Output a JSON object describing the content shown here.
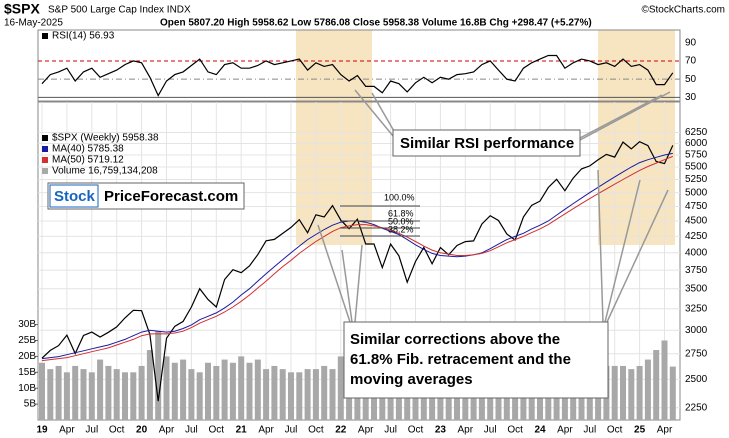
{
  "header": {
    "symbol": "$SPX",
    "name": "S&P 500 Large Cap Index INDX",
    "date": "16-May-2025",
    "quote": "Open 5807.20 High 5958.62 Low 5786.08 Close 5958.38 Volume 16.8B Chg +298.47 (+5.27%)",
    "credit": "©StockCharts.com"
  },
  "annotations": {
    "rsi_note": "Similar RSI performance",
    "brand_a": "Stock",
    "brand_b": "PriceForecast.com",
    "correction_note": [
      "Similar corrections above the",
      "61.8% Fib. retracement and the",
      "moving averages"
    ],
    "fib_left": [
      "100.0%",
      "61.8%",
      "50.0%",
      "38.2%"
    ]
  },
  "chart_data": [
    {
      "type": "line",
      "x": [
        "2019-01",
        "2019-02",
        "2019-03",
        "2019-04",
        "2019-05",
        "2019-06",
        "2019-07",
        "2019-08",
        "2019-09",
        "2019-10",
        "2019-11",
        "2019-12",
        "2020-01",
        "2020-02",
        "2020-03",
        "2020-04",
        "2020-05",
        "2020-06",
        "2020-07",
        "2020-08",
        "2020-09",
        "2020-10",
        "2020-11",
        "2020-12",
        "2021-01",
        "2021-02",
        "2021-03",
        "2021-04",
        "2021-05",
        "2021-06",
        "2021-07",
        "2021-08",
        "2021-09",
        "2021-10",
        "2021-11",
        "2021-12",
        "2022-01",
        "2022-02",
        "2022-03",
        "2022-04",
        "2022-05",
        "2022-06",
        "2022-07",
        "2022-08",
        "2022-09",
        "2022-10",
        "2022-11",
        "2022-12",
        "2023-01",
        "2023-02",
        "2023-03",
        "2023-04",
        "2023-05",
        "2023-06",
        "2023-07",
        "2023-08",
        "2023-09",
        "2023-10",
        "2023-11",
        "2023-12",
        "2024-01",
        "2024-02",
        "2024-03",
        "2024-04",
        "2024-05",
        "2024-06",
        "2024-07",
        "2024-08",
        "2024-09",
        "2024-10",
        "2024-11",
        "2024-12",
        "2025-01",
        "2025-02",
        "2025-03",
        "2025-04",
        "2025-05"
      ],
      "series": [
        {
          "name": "RSI(14) 56.93",
          "color": "#000000",
          "values": [
            45,
            55,
            58,
            62,
            48,
            58,
            62,
            52,
            56,
            60,
            66,
            70,
            68,
            52,
            32,
            48,
            55,
            58,
            65,
            72,
            58,
            55,
            66,
            68,
            62,
            62,
            65,
            70,
            66,
            68,
            70,
            72,
            60,
            68,
            64,
            66,
            55,
            48,
            54,
            42,
            42,
            35,
            48,
            45,
            36,
            46,
            52,
            46,
            52,
            50,
            55,
            56,
            58,
            66,
            70,
            60,
            50,
            48,
            62,
            68,
            72,
            76,
            76,
            62,
            68,
            72,
            70,
            66,
            68,
            64,
            72,
            64,
            66,
            60,
            44,
            44,
            56.93
          ]
        }
      ],
      "ylim": [
        26,
        104
      ],
      "yticks": [
        30,
        50,
        70,
        90
      ],
      "reflines": [
        {
          "value": 70,
          "color": "#cc0000"
        },
        {
          "value": 50,
          "color": "#888888"
        },
        {
          "value": 30,
          "color": "#555555"
        }
      ]
    },
    {
      "type": "line",
      "log": true,
      "grid": true,
      "x": [
        "2019-01",
        "2019-02",
        "2019-03",
        "2019-04",
        "2019-05",
        "2019-06",
        "2019-07",
        "2019-08",
        "2019-09",
        "2019-10",
        "2019-11",
        "2019-12",
        "2020-01",
        "2020-02",
        "2020-03",
        "2020-04",
        "2020-05",
        "2020-06",
        "2020-07",
        "2020-08",
        "2020-09",
        "2020-10",
        "2020-11",
        "2020-12",
        "2021-01",
        "2021-02",
        "2021-03",
        "2021-04",
        "2021-05",
        "2021-06",
        "2021-07",
        "2021-08",
        "2021-09",
        "2021-10",
        "2021-11",
        "2021-12",
        "2022-01",
        "2022-02",
        "2022-03",
        "2022-04",
        "2022-05",
        "2022-06",
        "2022-07",
        "2022-08",
        "2022-09",
        "2022-10",
        "2022-11",
        "2022-12",
        "2023-01",
        "2023-02",
        "2023-03",
        "2023-04",
        "2023-05",
        "2023-06",
        "2023-07",
        "2023-08",
        "2023-09",
        "2023-10",
        "2023-11",
        "2023-12",
        "2024-01",
        "2024-02",
        "2024-03",
        "2024-04",
        "2024-05",
        "2024-06",
        "2024-07",
        "2024-08",
        "2024-09",
        "2024-10",
        "2024-11",
        "2024-12",
        "2025-01",
        "2025-02",
        "2025-03",
        "2025-04",
        "2025-05"
      ],
      "series": [
        {
          "name": "$SPX (Weekly) 5958.38",
          "color": "#000000",
          "values": [
            2704,
            2784,
            2834,
            2946,
            2752,
            2942,
            2980,
            2926,
            2977,
            3038,
            3141,
            3231,
            3226,
            2954,
            2305,
            2912,
            3044,
            3100,
            3271,
            3500,
            3363,
            3270,
            3622,
            3756,
            3714,
            3811,
            3973,
            4181,
            4204,
            4298,
            4395,
            4523,
            4308,
            4605,
            4567,
            4766,
            4516,
            4374,
            4530,
            4132,
            4132,
            3785,
            4130,
            3955,
            3586,
            3872,
            4080,
            3840,
            4077,
            3970,
            4109,
            4169,
            4180,
            4450,
            4589,
            4508,
            4288,
            4194,
            4568,
            4770,
            4846,
            5096,
            5254,
            5036,
            5278,
            5460,
            5522,
            5648,
            5762,
            5705,
            6032,
            5882,
            6041,
            5955,
            5612,
            5569,
            5958
          ]
        },
        {
          "name": "MA(40) 5785.38",
          "color": "#1a1aa0",
          "values": [
            2700,
            2710,
            2720,
            2740,
            2760,
            2780,
            2800,
            2820,
            2840,
            2870,
            2900,
            2940,
            2980,
            3000,
            2990,
            2980,
            2990,
            3020,
            3060,
            3120,
            3160,
            3200,
            3260,
            3330,
            3420,
            3500,
            3600,
            3700,
            3800,
            3900,
            4000,
            4100,
            4200,
            4280,
            4360,
            4430,
            4480,
            4500,
            4500,
            4480,
            4440,
            4380,
            4330,
            4280,
            4200,
            4120,
            4050,
            3990,
            3960,
            3950,
            3940,
            3950,
            3970,
            4000,
            4060,
            4130,
            4200,
            4250,
            4300,
            4370,
            4430,
            4500,
            4600,
            4700,
            4800,
            4900,
            5000,
            5100,
            5200,
            5300,
            5400,
            5500,
            5590,
            5650,
            5700,
            5750,
            5785
          ]
        },
        {
          "name": "MA(50) 5719.12",
          "color": "#d32f2f",
          "values": [
            2680,
            2690,
            2700,
            2710,
            2730,
            2750,
            2770,
            2790,
            2810,
            2840,
            2870,
            2900,
            2940,
            2960,
            2960,
            2960,
            2970,
            2990,
            3030,
            3080,
            3120,
            3160,
            3210,
            3270,
            3340,
            3420,
            3510,
            3600,
            3700,
            3800,
            3890,
            3990,
            4080,
            4170,
            4250,
            4330,
            4390,
            4420,
            4440,
            4440,
            4420,
            4390,
            4350,
            4300,
            4240,
            4170,
            4100,
            4040,
            4000,
            3980,
            3960,
            3960,
            3970,
            3990,
            4030,
            4090,
            4150,
            4200,
            4250,
            4310,
            4370,
            4440,
            4530,
            4620,
            4710,
            4800,
            4890,
            4980,
            5070,
            5160,
            5250,
            5340,
            5430,
            5510,
            5580,
            5650,
            5719
          ]
        },
        {
          "name": "Volume 16,759,134,208",
          "color": "#a8a8a8",
          "axis": "y2",
          "type": "bar",
          "values": [
            18,
            16,
            17,
            15,
            17,
            16,
            15,
            19,
            17,
            16,
            15,
            15,
            17,
            22,
            28,
            20,
            18,
            19,
            16,
            15,
            18,
            17,
            19,
            18,
            20,
            18,
            19,
            16,
            17,
            16,
            15,
            15,
            16,
            16,
            17,
            16,
            20,
            18,
            17,
            17,
            19,
            18,
            15,
            15,
            17,
            17,
            16,
            17,
            17,
            16,
            19,
            15,
            16,
            17,
            15,
            14,
            16,
            17,
            16,
            17,
            17,
            17,
            17,
            17,
            17,
            17,
            18,
            18,
            17,
            17,
            17,
            16,
            17,
            19,
            22,
            25,
            16.8
          ]
        }
      ],
      "ylim": [
        2150,
        7000
      ],
      "yticks": [
        2250,
        2500,
        2750,
        3000,
        3250,
        3500,
        3750,
        4000,
        4250,
        4500,
        4750,
        5000,
        5250,
        5500,
        5750,
        6000,
        6250
      ],
      "y2lim": [
        0,
        100
      ],
      "y2ticks": [
        {
          "value": 5,
          "label": "5B"
        },
        {
          "value": 10,
          "label": "10B"
        },
        {
          "value": 15,
          "label": "15B"
        },
        {
          "value": 20,
          "label": "20B"
        },
        {
          "value": 25,
          "label": "25B"
        },
        {
          "value": 30,
          "label": "30B"
        }
      ],
      "xticks": [
        {
          "value": "2019-01",
          "label": "19"
        },
        {
          "value": "2019-04",
          "label": "Apr"
        },
        {
          "value": "2019-07",
          "label": "Jul"
        },
        {
          "value": "2019-10",
          "label": "Oct"
        },
        {
          "value": "2020-01",
          "label": "20"
        },
        {
          "value": "2020-04",
          "label": "Apr"
        },
        {
          "value": "2020-07",
          "label": "Jul"
        },
        {
          "value": "2020-10",
          "label": "Oct"
        },
        {
          "value": "2021-01",
          "label": "21"
        },
        {
          "value": "2021-04",
          "label": "Apr"
        },
        {
          "value": "2021-07",
          "label": "Jul"
        },
        {
          "value": "2021-10",
          "label": "Oct"
        },
        {
          "value": "2022-01",
          "label": "22"
        },
        {
          "value": "2022-04",
          "label": "Apr"
        },
        {
          "value": "2022-07",
          "label": "Jul"
        },
        {
          "value": "2022-10",
          "label": "Oct"
        },
        {
          "value": "2023-01",
          "label": "23"
        },
        {
          "value": "2023-04",
          "label": "Apr"
        },
        {
          "value": "2023-07",
          "label": "Jul"
        },
        {
          "value": "2023-10",
          "label": "Oct"
        },
        {
          "value": "2024-01",
          "label": "24"
        },
        {
          "value": "2024-04",
          "label": "Apr"
        },
        {
          "value": "2024-07",
          "label": "Jul"
        },
        {
          "value": "2024-10",
          "label": "Oct"
        },
        {
          "value": "2025-01",
          "label": "25"
        },
        {
          "value": "2025-04",
          "label": "Apr"
        }
      ]
    }
  ]
}
